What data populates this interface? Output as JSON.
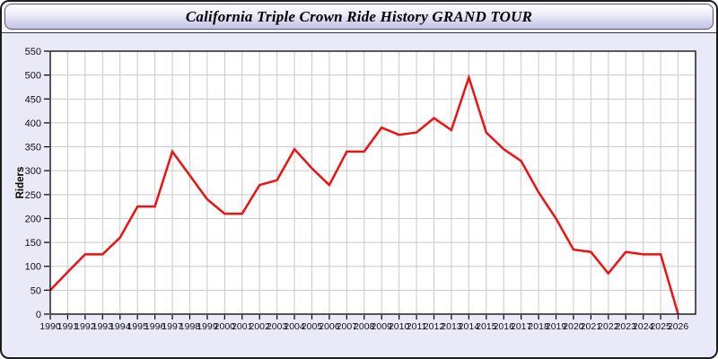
{
  "window": {
    "title": "California Triple Crown Ride History GRAND TOUR"
  },
  "chart_data": {
    "type": "line",
    "title": "California Triple Crown Ride History GRAND TOUR",
    "xlabel": "",
    "ylabel": "Riders",
    "x": [
      1990,
      1991,
      1992,
      1993,
      1994,
      1995,
      1996,
      1997,
      1998,
      1999,
      2000,
      2001,
      2002,
      2003,
      2004,
      2005,
      2006,
      2007,
      2008,
      2009,
      2010,
      2011,
      2012,
      2013,
      2014,
      2015,
      2016,
      2017,
      2018,
      2019,
      2020,
      2021,
      2022,
      2023,
      2024,
      2025,
      2026
    ],
    "series": [
      {
        "name": "Riders",
        "values": [
          50,
          88,
          125,
          125,
          160,
          225,
          225,
          340,
          290,
          240,
          210,
          210,
          270,
          280,
          345,
          305,
          270,
          340,
          340,
          390,
          375,
          380,
          410,
          385,
          495,
          380,
          345,
          320,
          255,
          200,
          135,
          130,
          85,
          130,
          125,
          125,
          0
        ]
      }
    ],
    "ylim": [
      0,
      550
    ],
    "y_ticks": [
      0,
      50,
      100,
      150,
      200,
      250,
      300,
      350,
      400,
      450,
      500,
      550
    ],
    "grid": true,
    "legend_position": "none",
    "colors": {
      "line": "#ee1111",
      "plot_background": "#ffffff",
      "grid": "#c9c9c9",
      "axis": "#000000",
      "tick_text": "#101018",
      "window_background": "#e9e9f7"
    }
  }
}
